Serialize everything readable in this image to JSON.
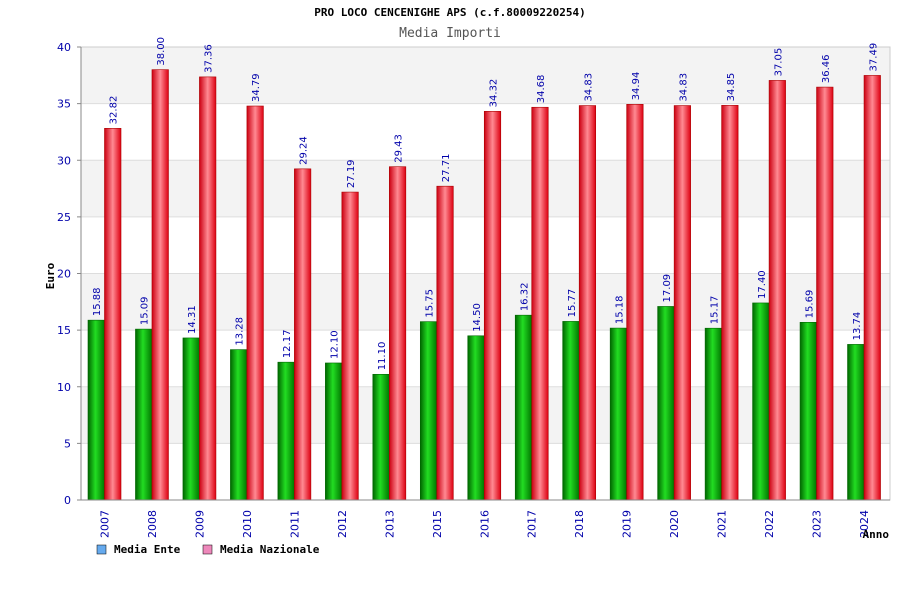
{
  "chart_data": {
    "type": "bar",
    "title": "PRO LOCO CENCENIGHE APS (c.f.80009220254)",
    "subtitle": "Media Importi",
    "xlabel": "Anno",
    "ylabel": "Euro",
    "ylim": [
      0,
      40
    ],
    "yticks": [
      0,
      5,
      10,
      15,
      20,
      25,
      30,
      35,
      40
    ],
    "categories": [
      "2007",
      "2008",
      "2009",
      "2010",
      "2011",
      "2012",
      "2013",
      "2015",
      "2016",
      "2017",
      "2018",
      "2019",
      "2020",
      "2021",
      "2022",
      "2023",
      "2024"
    ],
    "series": [
      {
        "name": "Media Ente",
        "values": [
          15.88,
          15.09,
          14.31,
          13.28,
          12.17,
          12.1,
          11.1,
          15.75,
          14.5,
          16.32,
          15.77,
          15.18,
          17.09,
          15.17,
          17.4,
          15.69,
          13.74
        ],
        "labels": [
          "15.88",
          "15.09",
          "14.31",
          "13.28",
          "12.17",
          "12.10",
          "11.10",
          "15.75",
          "14.50",
          "16.32",
          "15.77",
          "15.18",
          "17.09",
          "15.17",
          "17.40",
          "15.69",
          "13.74"
        ],
        "color": "#00aa00",
        "legend_color": "#66aaee"
      },
      {
        "name": "Media Nazionale",
        "values": [
          32.82,
          38.0,
          37.36,
          34.79,
          29.24,
          27.19,
          29.43,
          27.71,
          34.32,
          34.68,
          34.83,
          34.94,
          34.83,
          34.85,
          37.05,
          36.46,
          37.49
        ],
        "labels": [
          "32.82",
          "38.00",
          "37.36",
          "34.79",
          "29.24",
          "27.19",
          "29.43",
          "27.71",
          "34.32",
          "34.68",
          "34.83",
          "34.94",
          "34.83",
          "34.85",
          "37.05",
          "36.46",
          "37.49"
        ],
        "color": "#ee1122",
        "legend_color": "#ee88bb"
      }
    ],
    "grid": true,
    "legend_position": "bottom-left"
  }
}
